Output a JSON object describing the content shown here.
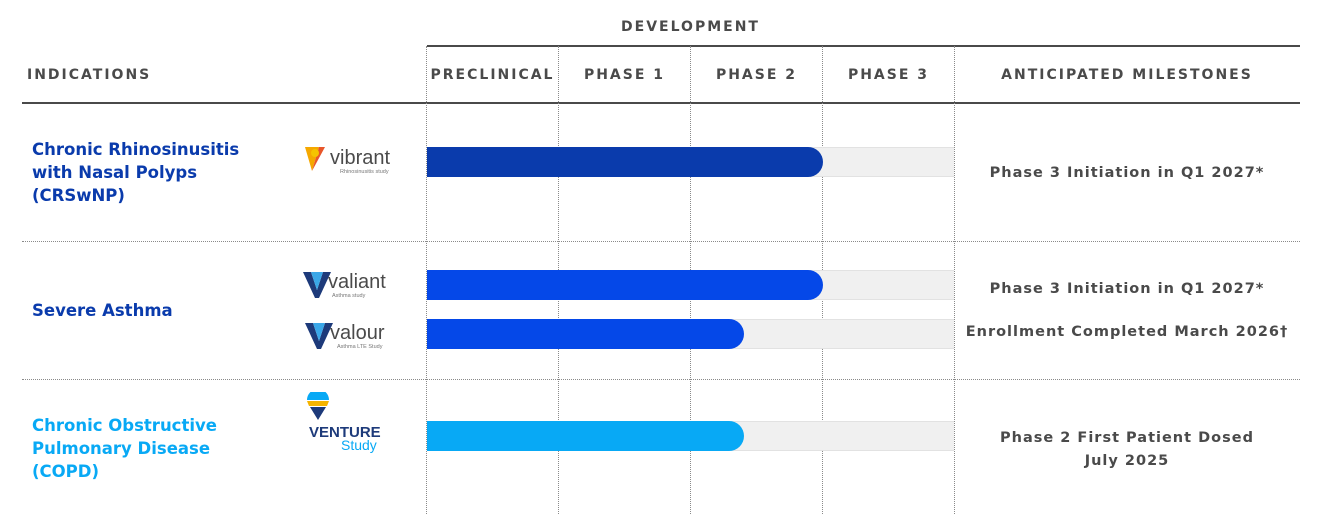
{
  "header": {
    "development": "DEVELOPMENT",
    "indications": "INDICATIONS",
    "preclinical": "PRECLINICAL",
    "phase1": "PHASE 1",
    "phase2": "PHASE 2",
    "phase3": "PHASE 3",
    "milestones": "ANTICIPATED MILESTONES"
  },
  "colors": {
    "dark_blue": "#0a3bac",
    "mid_blue": "#0548e8",
    "light_blue": "#08a9f5",
    "header_text": "#4a4a4a",
    "track": "#f0f0f0"
  },
  "chart_data": {
    "type": "table",
    "phases": [
      "PRECLINICAL",
      "PHASE 1",
      "PHASE 2",
      "PHASE 3"
    ],
    "rows": [
      {
        "indication": [
          "Chronic Rhinosinusitis",
          "with Nasal Polyps",
          "(CRSwNP)"
        ],
        "color": "#0a3bac",
        "studies": [
          {
            "logo_icon": "vibrant-logo-icon",
            "logo_name": "vibrant",
            "logo_sub": "Rhinosinusitis study",
            "progress_phases": 3.0,
            "milestone": [
              "Phase 3 Initiation in Q1 2027*"
            ]
          }
        ]
      },
      {
        "indication": [
          "Severe Asthma"
        ],
        "color": "#0548e8",
        "studies": [
          {
            "logo_icon": "valiant-logo-icon",
            "logo_name": "valiant",
            "logo_sub": "Asthma study",
            "progress_phases": 3.0,
            "milestone": [
              "Phase 3 Initiation in Q1 2027*"
            ]
          },
          {
            "logo_icon": "valour-logo-icon",
            "logo_name": "valour",
            "logo_sub": "Asthma LTE Study",
            "progress_phases": 2.4,
            "milestone": [
              "Enrollment Completed March 2026†"
            ]
          }
        ]
      },
      {
        "indication": [
          "Chronic Obstructive",
          "Pulmonary Disease",
          "(COPD)"
        ],
        "color": "#08a9f5",
        "studies": [
          {
            "logo_icon": "venture-logo-icon",
            "logo_name": "VENTURE",
            "logo_sub": "Study",
            "progress_phases": 2.4,
            "milestone": [
              "Phase 2 First Patient Dosed",
              "July 2025"
            ]
          }
        ]
      }
    ]
  }
}
